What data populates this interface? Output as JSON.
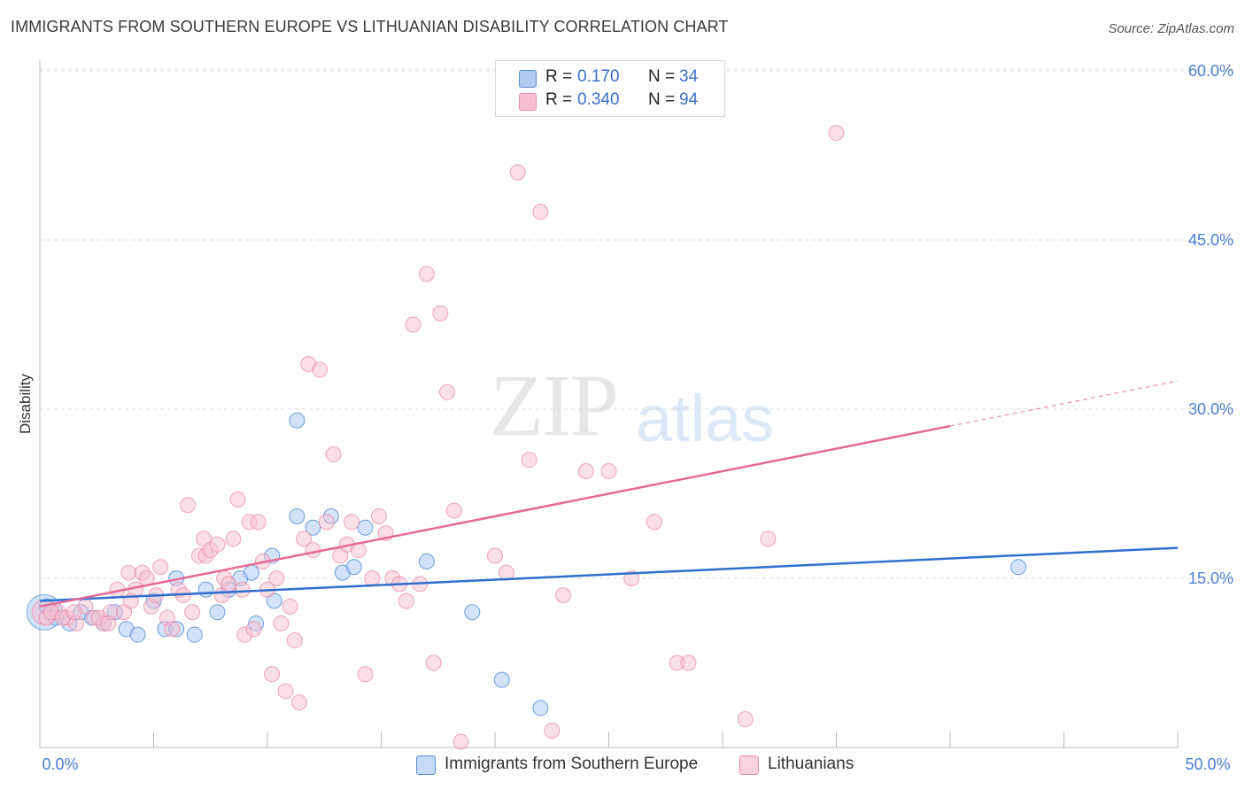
{
  "title": "IMMIGRANTS FROM SOUTHERN EUROPE VS LITHUANIAN DISABILITY CORRELATION CHART",
  "source": "Source: ZipAtlas.com",
  "watermark": {
    "zip": "ZIP",
    "atlas": "atlas"
  },
  "legend": {
    "series1": {
      "r_label": "R =",
      "r_value": "0.170",
      "n_label": "N =",
      "n_value": "34"
    },
    "series2": {
      "r_label": "R =",
      "r_value": "0.340",
      "n_label": "N =",
      "n_value": "94"
    }
  },
  "bottom_legend": {
    "series1": "Immigrants from Southern Europe",
    "series2": "Lithuanians"
  },
  "colors": {
    "blue_fill": "#aecbf2",
    "blue_stroke": "#5b8fd6",
    "blue_line": "#2f6fcf",
    "pink_fill": "#f6bfd0",
    "pink_stroke": "#e98aa8",
    "pink_line": "#e56a93",
    "axis_label": "#4a7fd0",
    "grid": "#dcdcdc"
  },
  "chart_data": {
    "type": "scatter",
    "title": "IMMIGRANTS FROM SOUTHERN EUROPE VS LITHUANIAN DISABILITY CORRELATION CHART",
    "xlabel": "",
    "ylabel": "Disability",
    "xlim": [
      0,
      50
    ],
    "ylim": [
      0,
      60
    ],
    "x_tick_labels": [
      "0.0%",
      "50.0%"
    ],
    "y_ticks": [
      15,
      30,
      45,
      60
    ],
    "y_tick_labels": [
      "15.0%",
      "30.0%",
      "45.0%",
      "60.0%"
    ],
    "grid": true,
    "legend_position": "top-center",
    "series": [
      {
        "name": "Immigrants from Southern Europe",
        "color": "#aecbf2",
        "points": [
          [
            0.3,
            12.5
          ],
          [
            0.7,
            11.5
          ],
          [
            1.3,
            11.0
          ],
          [
            1.8,
            12.0
          ],
          [
            2.3,
            11.5
          ],
          [
            2.8,
            11.0
          ],
          [
            3.3,
            12.0
          ],
          [
            3.8,
            10.5
          ],
          [
            4.3,
            10.0
          ],
          [
            5.0,
            13.0
          ],
          [
            5.5,
            10.5
          ],
          [
            6.0,
            15.0
          ],
          [
            6.0,
            10.5
          ],
          [
            6.8,
            10.0
          ],
          [
            7.3,
            14.0
          ],
          [
            7.8,
            12.0
          ],
          [
            8.3,
            14.0
          ],
          [
            8.8,
            15.0
          ],
          [
            9.3,
            15.5
          ],
          [
            9.5,
            11.0
          ],
          [
            10.2,
            17.0
          ],
          [
            10.3,
            13.0
          ],
          [
            11.3,
            29.0
          ],
          [
            11.3,
            20.5
          ],
          [
            12.0,
            19.5
          ],
          [
            12.8,
            20.5
          ],
          [
            13.3,
            15.5
          ],
          [
            13.8,
            16.0
          ],
          [
            14.3,
            19.5
          ],
          [
            17.0,
            16.5
          ],
          [
            19.0,
            12.0
          ],
          [
            20.3,
            6.0
          ],
          [
            22.0,
            3.5
          ],
          [
            43.0,
            16.0
          ]
        ],
        "trend": {
          "x": [
            0,
            50
          ],
          "y": [
            13.0,
            17.7
          ]
        }
      },
      {
        "name": "Lithuanians",
        "color": "#f6bfd0",
        "points": [
          [
            0.3,
            11.5
          ],
          [
            0.8,
            12.0
          ],
          [
            1.2,
            11.5
          ],
          [
            1.6,
            11.0
          ],
          [
            2.0,
            12.5
          ],
          [
            2.4,
            11.5
          ],
          [
            2.8,
            11.0
          ],
          [
            3.1,
            12.0
          ],
          [
            3.4,
            14.0
          ],
          [
            3.7,
            12.0
          ],
          [
            3.9,
            15.5
          ],
          [
            4.0,
            13.0
          ],
          [
            4.2,
            14.0
          ],
          [
            4.5,
            15.5
          ],
          [
            4.7,
            15.0
          ],
          [
            4.9,
            12.5
          ],
          [
            5.1,
            13.5
          ],
          [
            5.3,
            16.0
          ],
          [
            5.6,
            11.5
          ],
          [
            5.8,
            10.5
          ],
          [
            6.1,
            14.0
          ],
          [
            6.3,
            13.5
          ],
          [
            6.5,
            21.5
          ],
          [
            6.7,
            12.0
          ],
          [
            7.0,
            17.0
          ],
          [
            7.2,
            18.5
          ],
          [
            7.3,
            17.0
          ],
          [
            7.5,
            17.5
          ],
          [
            7.8,
            18.0
          ],
          [
            8.0,
            13.5
          ],
          [
            8.1,
            15.0
          ],
          [
            8.3,
            14.5
          ],
          [
            8.5,
            18.5
          ],
          [
            8.7,
            22.0
          ],
          [
            8.9,
            14.0
          ],
          [
            9.0,
            10.0
          ],
          [
            9.2,
            20.0
          ],
          [
            9.4,
            10.5
          ],
          [
            9.6,
            20.0
          ],
          [
            9.8,
            16.5
          ],
          [
            10.0,
            14.0
          ],
          [
            10.2,
            6.5
          ],
          [
            10.4,
            15.0
          ],
          [
            10.6,
            11.0
          ],
          [
            10.8,
            5.0
          ],
          [
            11.0,
            12.5
          ],
          [
            11.2,
            9.5
          ],
          [
            11.4,
            4.0
          ],
          [
            11.6,
            18.5
          ],
          [
            11.8,
            34.0
          ],
          [
            12.0,
            17.5
          ],
          [
            12.3,
            33.5
          ],
          [
            12.6,
            20.0
          ],
          [
            12.9,
            26.0
          ],
          [
            13.2,
            17.0
          ],
          [
            13.5,
            18.0
          ],
          [
            13.7,
            20.0
          ],
          [
            14.0,
            17.5
          ],
          [
            14.3,
            6.5
          ],
          [
            14.6,
            15.0
          ],
          [
            14.9,
            20.5
          ],
          [
            15.2,
            19.0
          ],
          [
            15.5,
            15.0
          ],
          [
            15.8,
            14.5
          ],
          [
            16.1,
            13.0
          ],
          [
            16.4,
            37.5
          ],
          [
            16.7,
            14.5
          ],
          [
            17.0,
            42.0
          ],
          [
            17.3,
            7.5
          ],
          [
            17.6,
            38.5
          ],
          [
            17.9,
            31.5
          ],
          [
            18.2,
            21.0
          ],
          [
            18.5,
            0.5
          ],
          [
            20.0,
            17.0
          ],
          [
            20.5,
            15.5
          ],
          [
            21.0,
            51.0
          ],
          [
            21.5,
            25.5
          ],
          [
            22.0,
            47.5
          ],
          [
            22.5,
            1.5
          ],
          [
            23.0,
            13.5
          ],
          [
            24.0,
            24.5
          ],
          [
            25.0,
            24.5
          ],
          [
            26.0,
            15.0
          ],
          [
            27.0,
            20.0
          ],
          [
            28.0,
            7.5
          ],
          [
            28.5,
            7.5
          ],
          [
            31.0,
            2.5
          ],
          [
            32.0,
            18.5
          ],
          [
            35.0,
            54.5
          ],
          [
            0.5,
            12.0
          ],
          [
            1.0,
            11.5
          ],
          [
            1.5,
            12.0
          ],
          [
            2.6,
            11.5
          ],
          [
            3.0,
            11.0
          ]
        ],
        "trend": {
          "x": [
            0,
            40
          ],
          "y": [
            12.5,
            28.5
          ]
        },
        "trend_dashed": {
          "x": [
            40,
            50
          ],
          "y": [
            28.5,
            32.5
          ]
        }
      }
    ]
  }
}
